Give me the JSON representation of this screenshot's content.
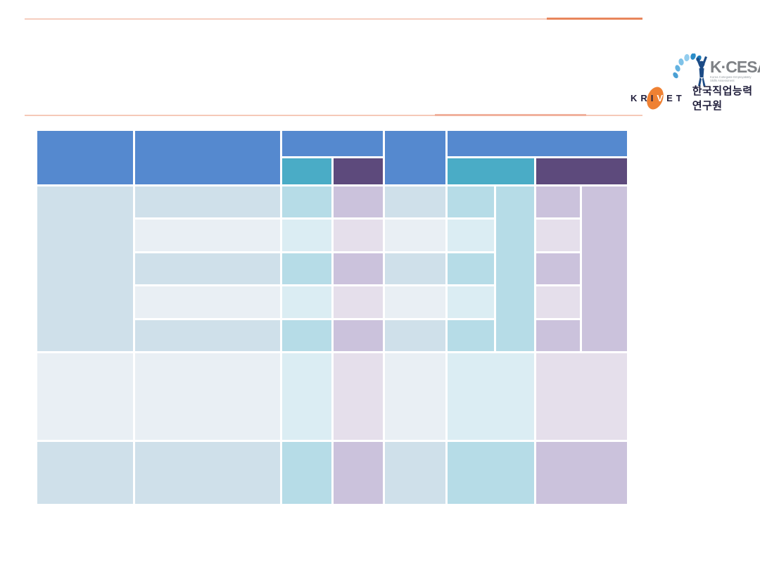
{
  "colors": {
    "rule-light-top": "#f5cdbf",
    "rule-accent-top": "#e8865c",
    "rule-light-bottom": "#f6c9b8",
    "rule-accent-bottom": "#f0b19d",
    "kcesa-title": "#7e8185",
    "kcesa-subtitle": "#9aa0a5",
    "krivet-orange": "#ef8133",
    "krivet-text": "#221f3d",
    "korean-text": "#1f1d3a"
  },
  "logos": {
    "kcesa": {
      "title": "K·CESA",
      "subtitle_line1": "Korea Collegiate Employability",
      "subtitle_line2": "Skills Assessment"
    },
    "krivet": {
      "letters_pre": "KRI",
      "letter_mid": "V",
      "letters_post": "ET",
      "org_name": "한국직업능력연구원"
    }
  },
  "table": {
    "palette": {
      "header_blue": "#5589cf",
      "header_teal": "#4aacc6",
      "header_purple": "#5d4a7c",
      "body_blue_dark": "#cfe0ea",
      "body_blue_light": "#e9eff4",
      "body_cyan_dark": "#b6dce7",
      "body_cyan_light": "#dbedf3",
      "body_purple_dark": "#cbc2dc",
      "body_purple_light": "#e5dfeb"
    },
    "cells": [
      {
        "name": "header-col1",
        "row": 1,
        "col": 1,
        "rowSpan": 2,
        "color": "header_blue"
      },
      {
        "name": "header-col2",
        "row": 1,
        "col": 2,
        "rowSpan": 2,
        "color": "header_blue"
      },
      {
        "name": "header-group1",
        "row": 1,
        "col": 3,
        "colSpan": 2,
        "color": "header_blue"
      },
      {
        "name": "header-col5",
        "row": 1,
        "col": 5,
        "rowSpan": 2,
        "color": "header_blue"
      },
      {
        "name": "header-group2",
        "row": 1,
        "col": 6,
        "colSpan": 4,
        "color": "header_blue"
      },
      {
        "name": "subheader-teal1",
        "row": 2,
        "col": 3,
        "color": "header_teal"
      },
      {
        "name": "subheader-purple1",
        "row": 2,
        "col": 4,
        "color": "header_purple"
      },
      {
        "name": "subheader-teal2",
        "row": 2,
        "col": 6,
        "colSpan": 2,
        "color": "header_teal"
      },
      {
        "name": "subheader-purple2",
        "row": 2,
        "col": 8,
        "colSpan": 2,
        "color": "header_purple"
      },
      {
        "name": "bodyA-col1-merged",
        "row": 3,
        "col": 1,
        "rowSpan": 5,
        "color": "body_blue_dark"
      },
      {
        "name": "cell-r1-c2",
        "row": 3,
        "col": 2,
        "color": "body_blue_dark"
      },
      {
        "name": "cell-r2-c2",
        "row": 4,
        "col": 2,
        "color": "body_blue_light"
      },
      {
        "name": "cell-r3-c2",
        "row": 5,
        "col": 2,
        "color": "body_blue_dark"
      },
      {
        "name": "cell-r4-c2",
        "row": 6,
        "col": 2,
        "color": "body_blue_light"
      },
      {
        "name": "cell-r5-c2",
        "row": 7,
        "col": 2,
        "color": "body_blue_dark"
      },
      {
        "name": "cell-r1-c3",
        "row": 3,
        "col": 3,
        "color": "body_cyan_dark"
      },
      {
        "name": "cell-r2-c3",
        "row": 4,
        "col": 3,
        "color": "body_cyan_light"
      },
      {
        "name": "cell-r3-c3",
        "row": 5,
        "col": 3,
        "color": "body_cyan_dark"
      },
      {
        "name": "cell-r4-c3",
        "row": 6,
        "col": 3,
        "color": "body_cyan_light"
      },
      {
        "name": "cell-r5-c3",
        "row": 7,
        "col": 3,
        "color": "body_cyan_dark"
      },
      {
        "name": "cell-r1-c4",
        "row": 3,
        "col": 4,
        "color": "body_purple_dark"
      },
      {
        "name": "cell-r2-c4",
        "row": 4,
        "col": 4,
        "color": "body_purple_light"
      },
      {
        "name": "cell-r3-c4",
        "row": 5,
        "col": 4,
        "color": "body_purple_dark"
      },
      {
        "name": "cell-r4-c4",
        "row": 6,
        "col": 4,
        "color": "body_purple_light"
      },
      {
        "name": "cell-r5-c4",
        "row": 7,
        "col": 4,
        "color": "body_purple_dark"
      },
      {
        "name": "cell-r1-c5",
        "row": 3,
        "col": 5,
        "color": "body_blue_dark"
      },
      {
        "name": "cell-r2-c5",
        "row": 4,
        "col": 5,
        "color": "body_blue_light"
      },
      {
        "name": "cell-r3-c5",
        "row": 5,
        "col": 5,
        "color": "body_blue_dark"
      },
      {
        "name": "cell-r4-c5",
        "row": 6,
        "col": 5,
        "color": "body_blue_light"
      },
      {
        "name": "cell-r5-c5",
        "row": 7,
        "col": 5,
        "color": "body_blue_dark"
      },
      {
        "name": "cell-r1-c6",
        "row": 3,
        "col": 6,
        "color": "body_cyan_dark"
      },
      {
        "name": "cell-r2-c6",
        "row": 4,
        "col": 6,
        "color": "body_cyan_light"
      },
      {
        "name": "cell-r3-c6",
        "row": 5,
        "col": 6,
        "color": "body_cyan_dark"
      },
      {
        "name": "cell-r4-c6",
        "row": 6,
        "col": 6,
        "color": "body_cyan_light"
      },
      {
        "name": "cell-r5-c6",
        "row": 7,
        "col": 6,
        "color": "body_cyan_dark"
      },
      {
        "name": "bodyA-col7-merged",
        "row": 3,
        "col": 7,
        "rowSpan": 5,
        "color": "body_cyan_dark"
      },
      {
        "name": "cell-r1-c8",
        "row": 3,
        "col": 8,
        "color": "body_purple_dark"
      },
      {
        "name": "cell-r2-c8",
        "row": 4,
        "col": 8,
        "color": "body_purple_light"
      },
      {
        "name": "cell-r3-c8",
        "row": 5,
        "col": 8,
        "color": "body_purple_dark"
      },
      {
        "name": "cell-r4-c8",
        "row": 6,
        "col": 8,
        "color": "body_purple_light"
      },
      {
        "name": "cell-r5-c8",
        "row": 7,
        "col": 8,
        "color": "body_purple_dark"
      },
      {
        "name": "bodyA-col9-merged",
        "row": 3,
        "col": 9,
        "rowSpan": 5,
        "color": "body_purple_dark"
      },
      {
        "name": "sectionB-c1",
        "row": 8,
        "col": 1,
        "color": "body_blue_light"
      },
      {
        "name": "sectionB-c2",
        "row": 8,
        "col": 2,
        "color": "body_blue_light"
      },
      {
        "name": "sectionB-c3",
        "row": 8,
        "col": 3,
        "color": "body_cyan_light"
      },
      {
        "name": "sectionB-c4",
        "row": 8,
        "col": 4,
        "color": "body_purple_light"
      },
      {
        "name": "sectionB-c5",
        "row": 8,
        "col": 5,
        "color": "body_blue_light"
      },
      {
        "name": "sectionB-c6-merged",
        "row": 8,
        "col": 6,
        "colSpan": 2,
        "color": "body_cyan_light"
      },
      {
        "name": "sectionB-c8-merged",
        "row": 8,
        "col": 8,
        "colSpan": 2,
        "color": "body_purple_light"
      },
      {
        "name": "sectionC-c1",
        "row": 9,
        "col": 1,
        "color": "body_blue_dark"
      },
      {
        "name": "sectionC-c2",
        "row": 9,
        "col": 2,
        "color": "body_blue_dark"
      },
      {
        "name": "sectionC-c3",
        "row": 9,
        "col": 3,
        "color": "body_cyan_dark"
      },
      {
        "name": "sectionC-c4",
        "row": 9,
        "col": 4,
        "color": "body_purple_dark"
      },
      {
        "name": "sectionC-c5",
        "row": 9,
        "col": 5,
        "color": "body_blue_dark"
      },
      {
        "name": "sectionC-c6-merged",
        "row": 9,
        "col": 6,
        "colSpan": 2,
        "color": "body_cyan_dark"
      },
      {
        "name": "sectionC-c8-merged",
        "row": 9,
        "col": 8,
        "colSpan": 2,
        "color": "body_purple_dark"
      }
    ]
  }
}
